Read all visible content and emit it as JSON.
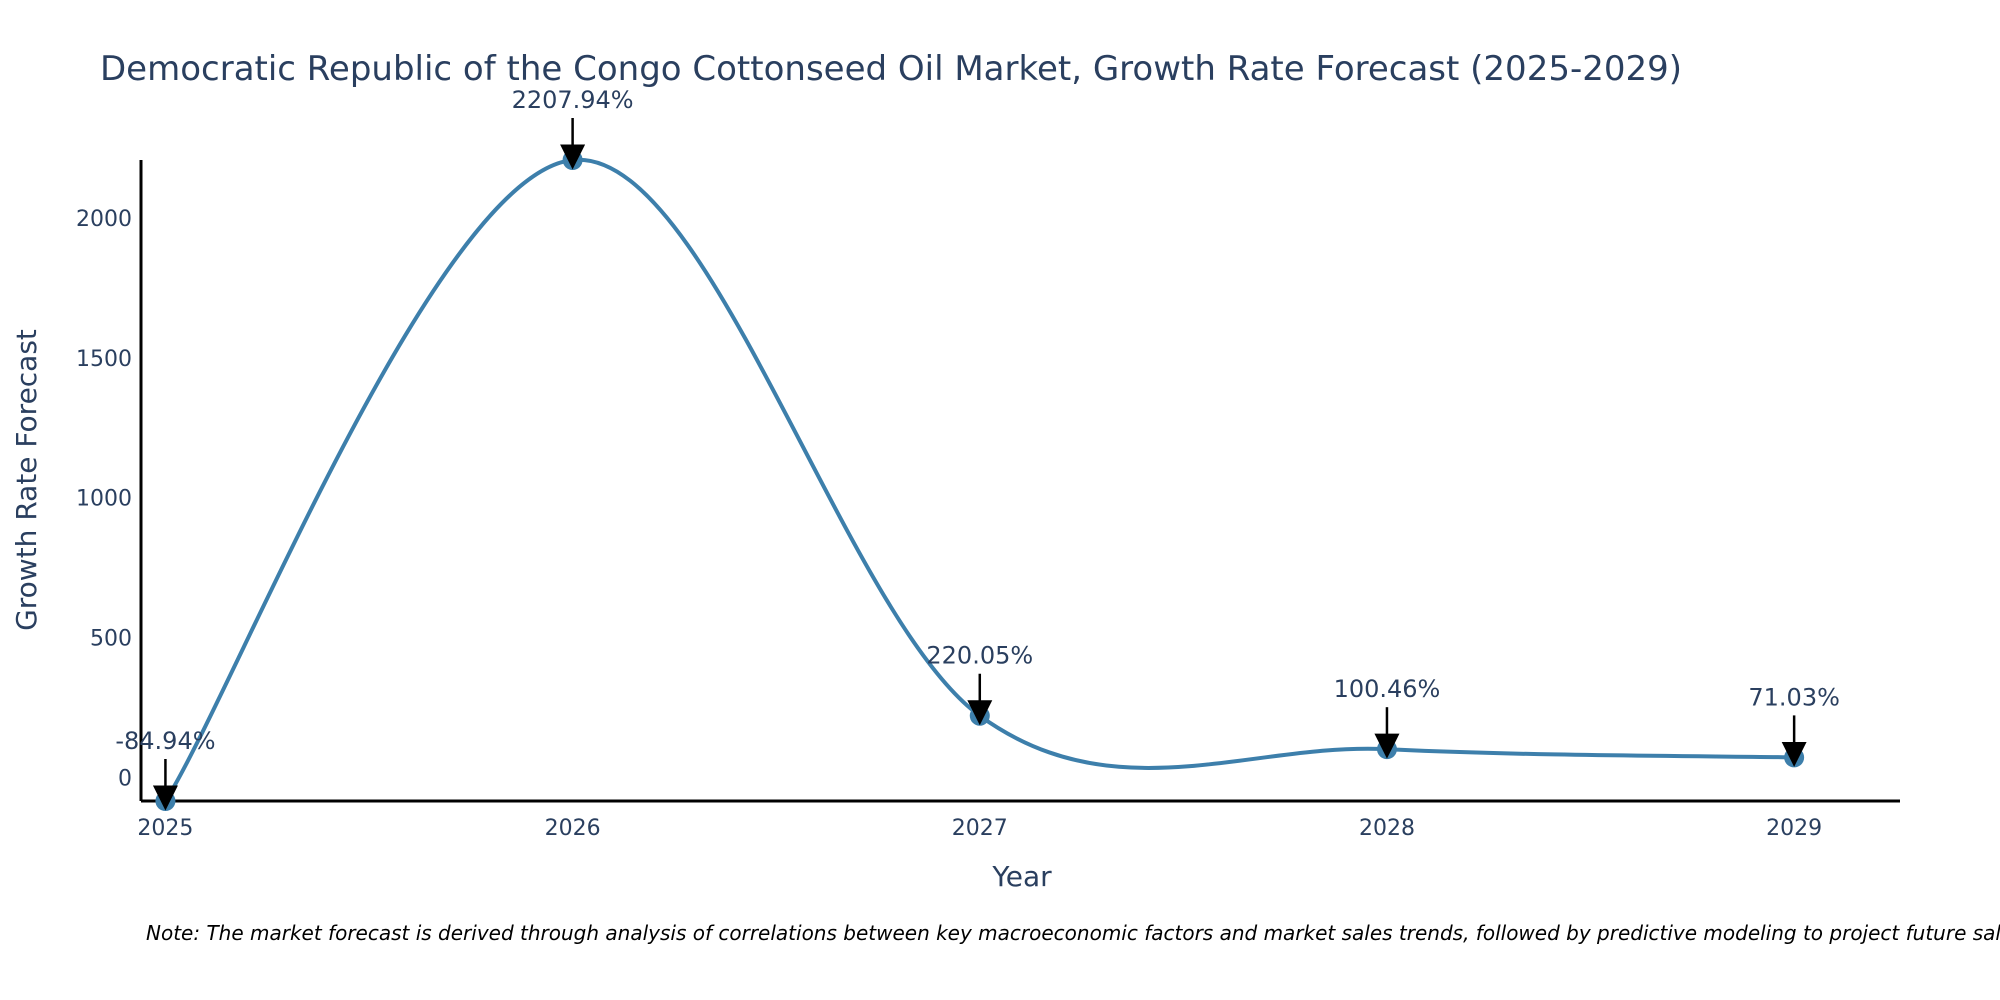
{
  "chart_data": {
    "type": "line",
    "title": "Democratic Republic of the Congo Cottonseed Oil Market, Growth Rate Forecast (2025-2029)",
    "xlabel": "Year",
    "ylabel": "Growth Rate Forecast",
    "x": [
      2025,
      2026,
      2027,
      2028,
      2029
    ],
    "values": [
      -84.94,
      2207.94,
      220.05,
      100.46,
      71.03
    ],
    "data_labels": [
      "-84.94%",
      "2207.94%",
      "220.05%",
      "100.46%",
      "71.03%"
    ],
    "x_ticks": [
      "2025",
      "2026",
      "2027",
      "2028",
      "2029"
    ],
    "y_ticks": [
      0,
      500,
      1000,
      1500,
      2000
    ],
    "y_tick_labels": [
      "0",
      "500",
      "1000",
      "1500",
      "2000"
    ],
    "xlim": [
      2024.94,
      2029.26
    ],
    "ylim": [
      -84.94,
      2207.94
    ],
    "line_shape": "spline",
    "grid": false,
    "note": "Note: The market forecast is derived through analysis of correlations between key macroeconomic factors and market sales trends, followed by predictive modeling to project future sales.",
    "colors": {
      "line": "#3d7fab",
      "marker": "#3d7fab",
      "text": "#2a3f5f",
      "axis": "#000000",
      "arrow": "#000000"
    }
  }
}
